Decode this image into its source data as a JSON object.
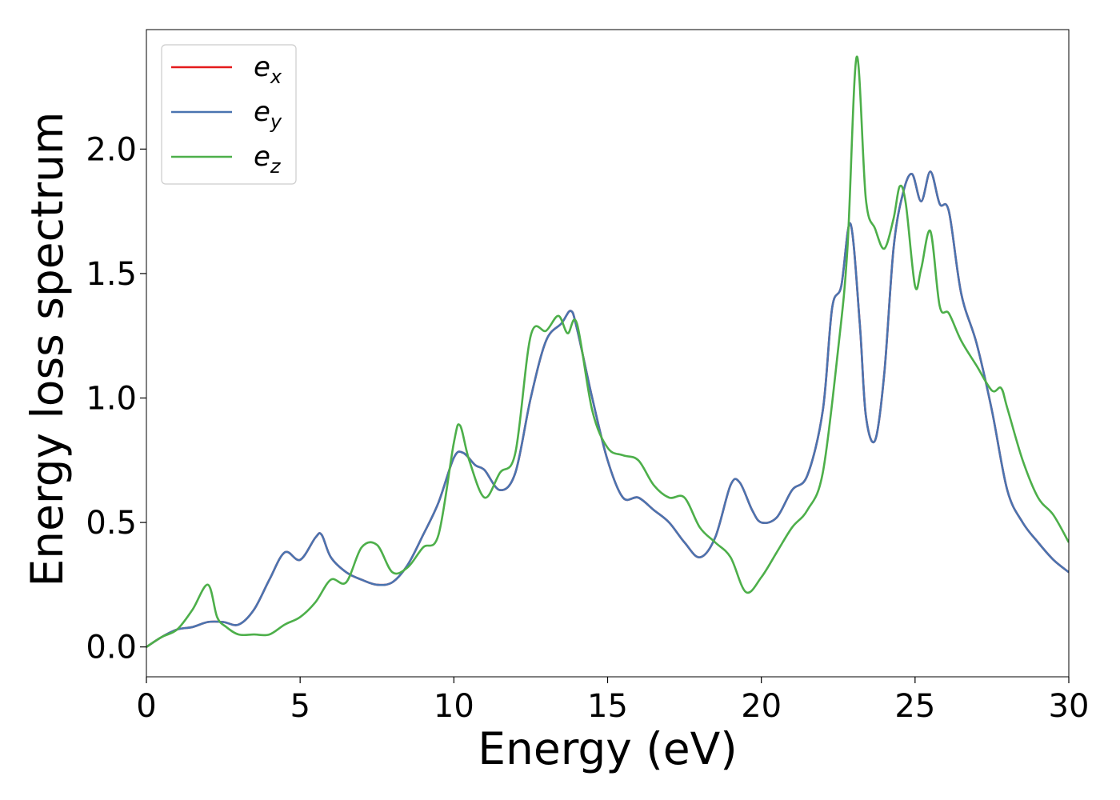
{
  "chart_data": {
    "type": "line",
    "xlabel": "Energy (eV)",
    "ylabel": "Energy loss spectrum",
    "xlim": [
      0,
      30
    ],
    "ylim": [
      -0.12,
      2.48
    ],
    "xticks": [
      "0",
      "5",
      "10",
      "15",
      "20",
      "25",
      "30"
    ],
    "yticks": [
      "0.0",
      "0.5",
      "1.0",
      "1.5",
      "2.0"
    ],
    "grid": false,
    "legend_position": "top-left",
    "series": [
      {
        "name": "e_x",
        "label_main": "e",
        "label_sub": "x",
        "color": "#e41a1c",
        "x": [
          0,
          0.5,
          1,
          1.5,
          2,
          2.5,
          3,
          3.5,
          4,
          4.5,
          5,
          5.5,
          5.7,
          6,
          6.5,
          7,
          7.5,
          8,
          8.5,
          9,
          9.5,
          10,
          10.3,
          10.7,
          11,
          11.5,
          12,
          12.5,
          13,
          13.5,
          13.8,
          14,
          14.5,
          15,
          15.5,
          16,
          16.5,
          17,
          17.5,
          18,
          18.5,
          19,
          19.3,
          19.7,
          20,
          20.5,
          21,
          21.5,
          22,
          22.3,
          22.6,
          22.9,
          23.2,
          23.4,
          23.7,
          24,
          24.3,
          24.6,
          24.9,
          25.2,
          25.5,
          25.8,
          26.1,
          26.5,
          27,
          27.5,
          28,
          28.5,
          29,
          29.5,
          30
        ],
        "y": [
          0,
          0.04,
          0.07,
          0.08,
          0.1,
          0.1,
          0.09,
          0.15,
          0.27,
          0.38,
          0.35,
          0.44,
          0.45,
          0.36,
          0.3,
          0.27,
          0.25,
          0.26,
          0.33,
          0.45,
          0.58,
          0.76,
          0.78,
          0.73,
          0.71,
          0.63,
          0.7,
          1.0,
          1.23,
          1.3,
          1.35,
          1.28,
          1.0,
          0.75,
          0.6,
          0.6,
          0.55,
          0.5,
          0.42,
          0.36,
          0.44,
          0.65,
          0.66,
          0.55,
          0.5,
          0.52,
          0.63,
          0.69,
          0.95,
          1.36,
          1.45,
          1.7,
          1.3,
          0.93,
          0.83,
          1.1,
          1.6,
          1.82,
          1.9,
          1.79,
          1.91,
          1.78,
          1.75,
          1.42,
          1.22,
          0.95,
          0.63,
          0.5,
          0.42,
          0.35,
          0.3
        ]
      },
      {
        "name": "e_y",
        "label_main": "e",
        "label_sub": "y",
        "color": "#4a74b0",
        "x": [
          0,
          0.5,
          1,
          1.5,
          2,
          2.5,
          3,
          3.5,
          4,
          4.5,
          5,
          5.5,
          5.7,
          6,
          6.5,
          7,
          7.5,
          8,
          8.5,
          9,
          9.5,
          10,
          10.3,
          10.7,
          11,
          11.5,
          12,
          12.5,
          13,
          13.5,
          13.8,
          14,
          14.5,
          15,
          15.5,
          16,
          16.5,
          17,
          17.5,
          18,
          18.5,
          19,
          19.3,
          19.7,
          20,
          20.5,
          21,
          21.5,
          22,
          22.3,
          22.6,
          22.9,
          23.2,
          23.4,
          23.7,
          24,
          24.3,
          24.6,
          24.9,
          25.2,
          25.5,
          25.8,
          26.1,
          26.5,
          27,
          27.5,
          28,
          28.5,
          29,
          29.5,
          30
        ],
        "y": [
          0,
          0.04,
          0.07,
          0.08,
          0.1,
          0.1,
          0.09,
          0.15,
          0.27,
          0.38,
          0.35,
          0.44,
          0.45,
          0.36,
          0.3,
          0.27,
          0.25,
          0.26,
          0.33,
          0.45,
          0.58,
          0.76,
          0.78,
          0.73,
          0.71,
          0.63,
          0.7,
          1.0,
          1.23,
          1.3,
          1.35,
          1.28,
          1.0,
          0.75,
          0.6,
          0.6,
          0.55,
          0.5,
          0.42,
          0.36,
          0.44,
          0.65,
          0.66,
          0.55,
          0.5,
          0.52,
          0.63,
          0.69,
          0.95,
          1.36,
          1.45,
          1.7,
          1.3,
          0.93,
          0.83,
          1.1,
          1.6,
          1.82,
          1.9,
          1.79,
          1.91,
          1.78,
          1.75,
          1.42,
          1.22,
          0.95,
          0.63,
          0.5,
          0.42,
          0.35,
          0.3
        ]
      },
      {
        "name": "e_z",
        "label_main": "e",
        "label_sub": "z",
        "color": "#4daf4a",
        "x": [
          0,
          0.5,
          1,
          1.5,
          2,
          2.3,
          2.6,
          3,
          3.5,
          4,
          4.5,
          5,
          5.5,
          6,
          6.5,
          7,
          7.5,
          8,
          8.5,
          9,
          9.5,
          10,
          10.2,
          10.5,
          11,
          11.5,
          12,
          12.5,
          13,
          13.4,
          13.7,
          14,
          14.5,
          15,
          15.5,
          16,
          16.5,
          17,
          17.5,
          18,
          18.5,
          19,
          19.5,
          20,
          20.5,
          21,
          21.5,
          22,
          22.5,
          22.8,
          23.1,
          23.4,
          23.7,
          24,
          24.3,
          24.5,
          24.7,
          25,
          25.2,
          25.5,
          25.8,
          26.1,
          26.5,
          27,
          27.5,
          27.8,
          28,
          28.5,
          29,
          29.5,
          30
        ],
        "y": [
          0,
          0.04,
          0.07,
          0.15,
          0.25,
          0.12,
          0.08,
          0.05,
          0.05,
          0.05,
          0.09,
          0.12,
          0.18,
          0.27,
          0.26,
          0.4,
          0.41,
          0.3,
          0.32,
          0.4,
          0.45,
          0.82,
          0.89,
          0.75,
          0.6,
          0.7,
          0.78,
          1.25,
          1.27,
          1.33,
          1.26,
          1.3,
          0.95,
          0.8,
          0.77,
          0.75,
          0.65,
          0.6,
          0.6,
          0.48,
          0.42,
          0.36,
          0.22,
          0.28,
          0.38,
          0.48,
          0.55,
          0.7,
          1.2,
          1.6,
          2.37,
          1.8,
          1.68,
          1.6,
          1.72,
          1.85,
          1.78,
          1.45,
          1.52,
          1.67,
          1.37,
          1.34,
          1.23,
          1.13,
          1.03,
          1.04,
          0.96,
          0.75,
          0.6,
          0.53,
          0.42
        ]
      }
    ]
  }
}
